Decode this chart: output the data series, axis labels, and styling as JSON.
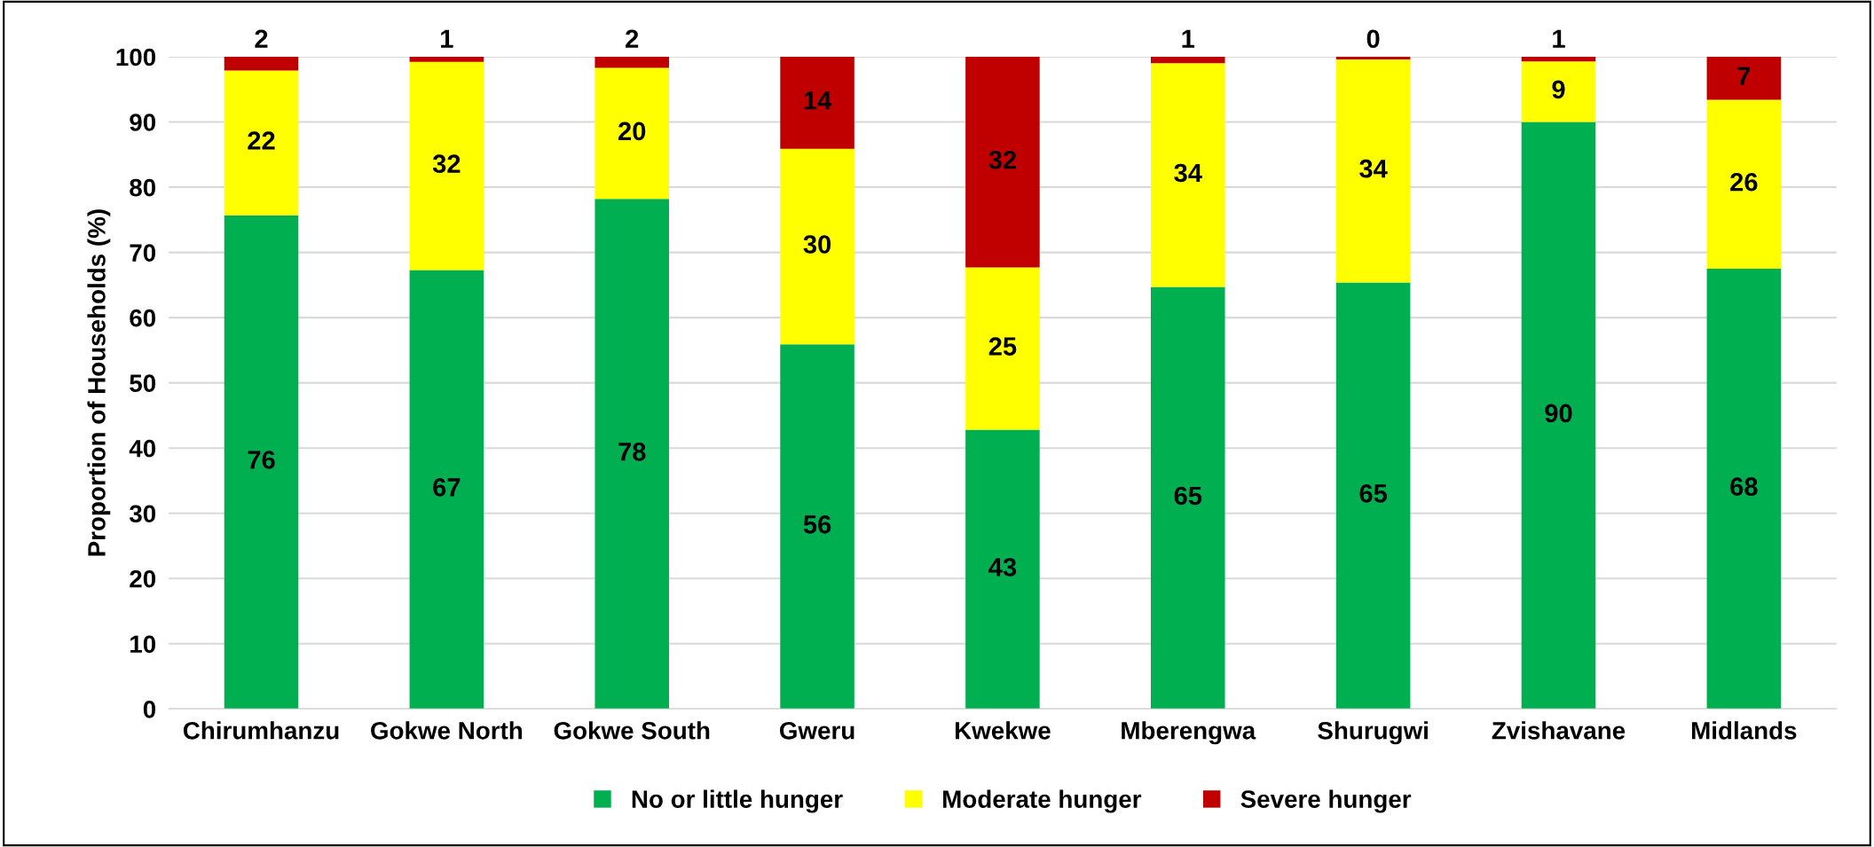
{
  "chart_data": {
    "type": "bar",
    "stacked": true,
    "ylabel": "Proportion of Households (%)",
    "categories": [
      "Chirumhanzu",
      "Gokwe North",
      "Gokwe South",
      "Gweru",
      "Kwekwe",
      "Mberengwa",
      "Shurugwi",
      "Zvishavane",
      "Midlands"
    ],
    "series": [
      {
        "name": "No or little hunger",
        "color": "#00b050",
        "values": [
          75.7,
          67.3,
          78.2,
          55.9,
          42.8,
          64.7,
          65.4,
          90.0,
          67.5
        ],
        "value_labels": [
          "76",
          "67",
          "78",
          "56",
          "43",
          "65",
          "65",
          "90",
          "68"
        ]
      },
      {
        "name": "Moderate hunger",
        "color": "#ffff00",
        "values": [
          22.2,
          31.9,
          20.1,
          30.0,
          24.9,
          34.3,
          34.2,
          9.3,
          25.9
        ],
        "value_labels": [
          "22",
          "32",
          "20",
          "30",
          "25",
          "34",
          "34",
          "9",
          "26"
        ]
      },
      {
        "name": "Severe hunger",
        "color": "#c00000",
        "values": [
          2.1,
          0.8,
          1.7,
          14.1,
          32.3,
          1.0,
          0.4,
          0.7,
          6.6
        ],
        "value_labels": [
          "2",
          "1",
          "2",
          "14",
          "32",
          "1",
          "0",
          "1",
          "7"
        ]
      }
    ],
    "ylim": [
      0,
      100
    ],
    "yticks": [
      0,
      10,
      20,
      30,
      40,
      50,
      60,
      70,
      80,
      90,
      100
    ],
    "grid": "y",
    "legend": "bottom"
  }
}
